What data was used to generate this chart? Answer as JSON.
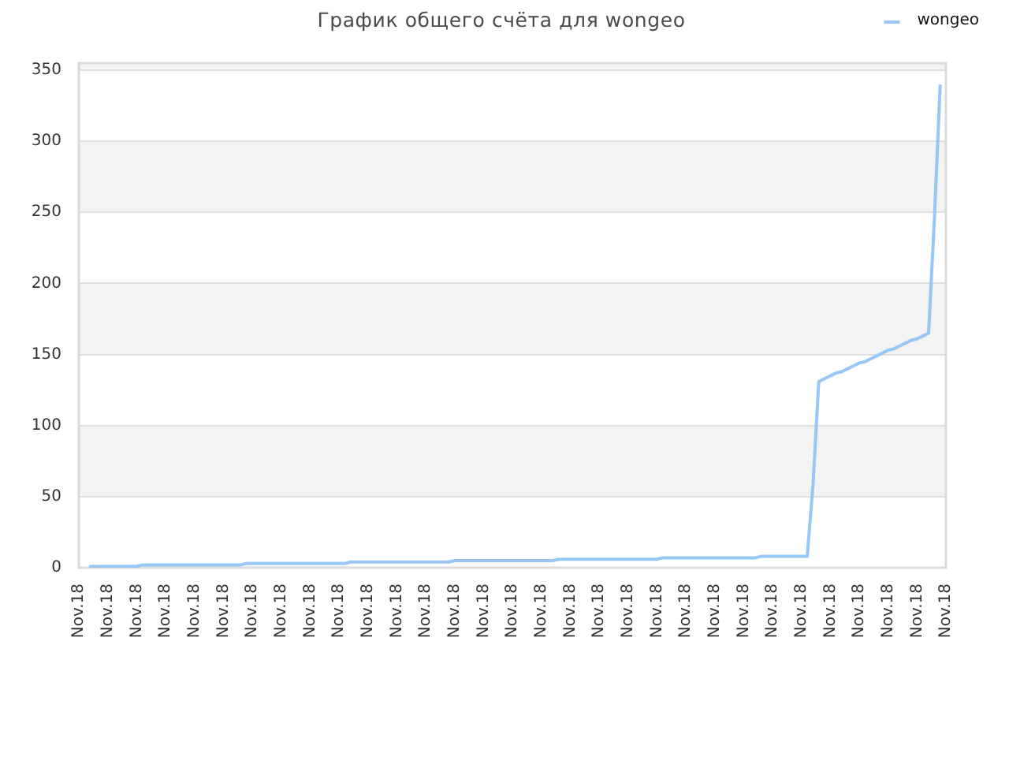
{
  "chart_data": {
    "type": "line",
    "title": "График общего счёта для wongeo",
    "categories": [
      "Nov.18",
      null,
      null,
      null,
      null,
      "Nov.18",
      null,
      null,
      null,
      null,
      "Nov.18",
      null,
      null,
      null,
      null,
      "Nov.18",
      null,
      null,
      null,
      null,
      "Nov.18",
      null,
      null,
      null,
      null,
      "Nov.18",
      null,
      null,
      null,
      null,
      "Nov.18",
      null,
      null,
      null,
      null,
      "Nov.18",
      null,
      null,
      null,
      null,
      "Nov.18",
      null,
      null,
      null,
      null,
      "Nov.18",
      null,
      null,
      null,
      null,
      "Nov.18",
      null,
      null,
      null,
      null,
      "Nov.18",
      null,
      null,
      null,
      null,
      "Nov.18",
      null,
      null,
      null,
      null,
      "Nov.18",
      null,
      null,
      null,
      null,
      "Nov.18",
      null,
      null,
      null,
      null,
      "Nov.18",
      null,
      null,
      null,
      null,
      "Nov.18",
      null,
      null,
      null,
      null,
      "Nov.18",
      null,
      null,
      null,
      null,
      "Nov.18",
      null,
      null,
      null,
      null,
      "Nov.18",
      null,
      null,
      null,
      null,
      "Nov.18",
      null,
      null,
      null,
      null,
      "Nov.18",
      null,
      null,
      null,
      null,
      "Nov.18",
      null,
      null,
      null,
      null,
      "Nov.18",
      null,
      null,
      null,
      null,
      "Nov.18",
      null,
      null,
      null,
      null,
      "Nov.18",
      null,
      null,
      null,
      null,
      "Nov.18",
      null,
      null,
      null,
      null,
      "Nov.18",
      null,
      null,
      null,
      null,
      "Nov.18",
      null,
      null,
      null,
      null,
      "Nov.18",
      null,
      null,
      null,
      null,
      "Nov.18"
    ],
    "series": [
      {
        "name": "wongeo",
        "color": "#97c7f5",
        "values": [
          null,
          null,
          1,
          1,
          1,
          1,
          1,
          1,
          1,
          1,
          1,
          2,
          2,
          2,
          2,
          2,
          2,
          2,
          2,
          2,
          2,
          2,
          2,
          2,
          2,
          2,
          2,
          2,
          2,
          3,
          3,
          3,
          3,
          3,
          3,
          3,
          3,
          3,
          3,
          3,
          3,
          3,
          3,
          3,
          3,
          3,
          3,
          4,
          4,
          4,
          4,
          4,
          4,
          4,
          4,
          4,
          4,
          4,
          4,
          4,
          4,
          4,
          4,
          4,
          4,
          5,
          5,
          5,
          5,
          5,
          5,
          5,
          5,
          5,
          5,
          5,
          5,
          5,
          5,
          5,
          5,
          5,
          5,
          6,
          6,
          6,
          6,
          6,
          6,
          6,
          6,
          6,
          6,
          6,
          6,
          6,
          6,
          6,
          6,
          6,
          6,
          7,
          7,
          7,
          7,
          7,
          7,
          7,
          7,
          7,
          7,
          7,
          7,
          7,
          7,
          7,
          7,
          7,
          8,
          8,
          8,
          8,
          8,
          8,
          8,
          8,
          8,
          58,
          131,
          133,
          135,
          137,
          138,
          140,
          142,
          144,
          145,
          147,
          149,
          151,
          153,
          154,
          156,
          158,
          160,
          161,
          163,
          165,
          245,
          339,
          null
        ]
      }
    ],
    "ylim": [
      0,
      355
    ],
    "yticks": [
      0,
      50,
      100,
      150,
      200,
      250,
      300,
      350
    ],
    "grid": "y",
    "legend": "top right"
  }
}
